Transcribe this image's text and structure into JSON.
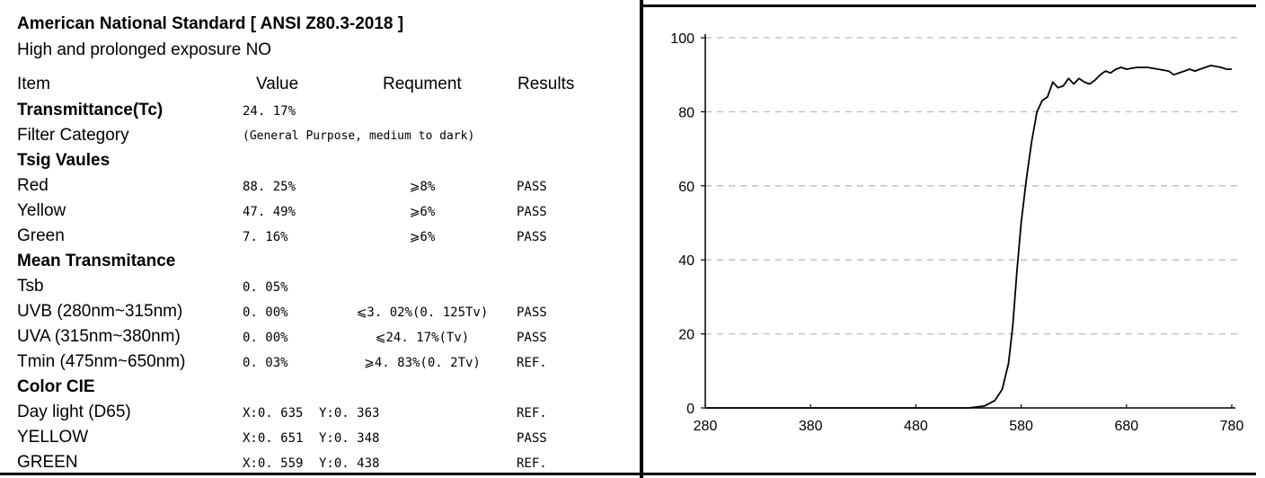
{
  "report": {
    "title": "American National Standard [ ANSI Z80.3-2018 ]",
    "subtitle": "High and prolonged exposure NO",
    "headers": {
      "item": "Item",
      "value": "Value",
      "requirement": "Requment",
      "results": "Results"
    },
    "rows": [
      {
        "label": "Transmittance(Tc)",
        "bold": true,
        "value": "24. 17%",
        "requirement": "",
        "result": ""
      },
      {
        "label": "Filter Category",
        "bold": false,
        "note": "(General Purpose, medium to dark)"
      },
      {
        "label": "Tsig Vaules",
        "bold": true
      },
      {
        "label": "Red",
        "bold": false,
        "value": "88. 25%",
        "requirement": "⩾8%",
        "result": "PASS"
      },
      {
        "label": "Yellow",
        "bold": false,
        "value": "47. 49%",
        "requirement": "⩾6%",
        "result": "PASS"
      },
      {
        "label": "Green",
        "bold": false,
        "value": "7. 16%",
        "requirement": "⩾6%",
        "result": "PASS"
      },
      {
        "label": "Mean Transmitance",
        "bold": true
      },
      {
        "label": "Tsb",
        "bold": false,
        "value": "0. 05%",
        "requirement": "",
        "result": ""
      },
      {
        "label": "UVB  (280nm~315nm)",
        "bold": false,
        "value": "0. 00%",
        "requirement": "⩽3. 02%(0. 125Tv)",
        "result": "PASS"
      },
      {
        "label": "UVA  (315nm~380nm)",
        "bold": false,
        "value": "0. 00%",
        "requirement": "⩽24. 17%(Tv)",
        "result": "PASS"
      },
      {
        "label": "Tmin (475nm~650nm)",
        "bold": false,
        "value": "0. 03%",
        "requirement": "⩾4. 83%(0. 2Tv)",
        "result": "REF."
      },
      {
        "label": "Color CIE",
        "bold": true
      },
      {
        "label": "Day light  (D65)",
        "bold": false,
        "x": "X:0. 635",
        "y": "Y:0. 363",
        "result": "REF."
      },
      {
        "label": "YELLOW",
        "bold": false,
        "x": "X:0. 651",
        "y": "Y:0. 348",
        "result": "PASS"
      },
      {
        "label": "GREEN",
        "bold": false,
        "x": "X:0. 559",
        "y": "Y:0. 438",
        "result": "REF."
      }
    ]
  },
  "chart_data": {
    "type": "line",
    "title": "",
    "xlabel": "",
    "ylabel": "",
    "xlim": [
      280,
      780
    ],
    "ylim": [
      0,
      100
    ],
    "x_ticks": [
      "280",
      "380",
      "480",
      "580",
      "680",
      "780"
    ],
    "y_ticks": [
      "0",
      "20",
      "40",
      "60",
      "80",
      "100"
    ],
    "grid": "horizontal dashed",
    "line_color": "#000000",
    "grid_color": "#bbbbbb",
    "series": [
      {
        "x": [
          280,
          400,
          500,
          530,
          545,
          555,
          562,
          568,
          572,
          576,
          580,
          585,
          590,
          595,
          600,
          605,
          610,
          615,
          620,
          625,
          630,
          635,
          640,
          645,
          650,
          655,
          660,
          665,
          670,
          675,
          680,
          690,
          700,
          710,
          720,
          725,
          730,
          735,
          740,
          745,
          750,
          760,
          770,
          775,
          780
        ],
        "y": [
          0,
          0,
          0,
          0,
          0.5,
          2,
          5,
          12,
          22,
          37,
          50,
          62,
          72,
          80,
          83,
          84,
          88,
          86.5,
          87,
          89,
          87.5,
          89,
          88,
          87.5,
          88.5,
          90,
          91,
          90.5,
          91.5,
          92,
          91.5,
          92,
          92,
          91.5,
          91,
          90,
          90.5,
          91,
          91.5,
          91,
          91.5,
          92.5,
          92,
          91.5,
          91.5
        ]
      }
    ]
  }
}
